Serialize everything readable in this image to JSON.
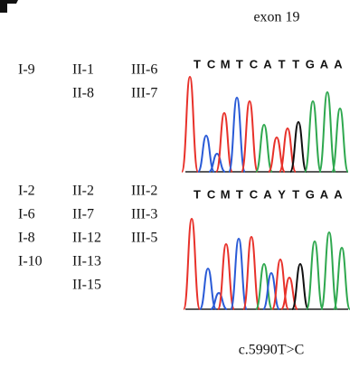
{
  "title": "exon 19",
  "groups": [
    {
      "columns": [
        [
          "I-9"
        ],
        [
          "II-1",
          "II-8"
        ],
        [
          "III-6",
          "III-7"
        ]
      ],
      "sequence": [
        "T",
        "C",
        "M",
        "T",
        "C",
        "A",
        "T",
        "T",
        "G",
        "A",
        "A"
      ]
    },
    {
      "columns": [
        [
          "I-2",
          "I-6",
          "I-8",
          "I-10"
        ],
        [
          "II-2",
          "II-7",
          "II-12",
          "II-13",
          "II-15"
        ],
        [
          "III-2",
          "III-3",
          "III-5"
        ]
      ],
      "sequence": [
        "T",
        "C",
        "M",
        "T",
        "C",
        "A",
        "Y",
        "T",
        "G",
        "A",
        "A"
      ]
    }
  ],
  "variant": "c.5990T>C"
}
